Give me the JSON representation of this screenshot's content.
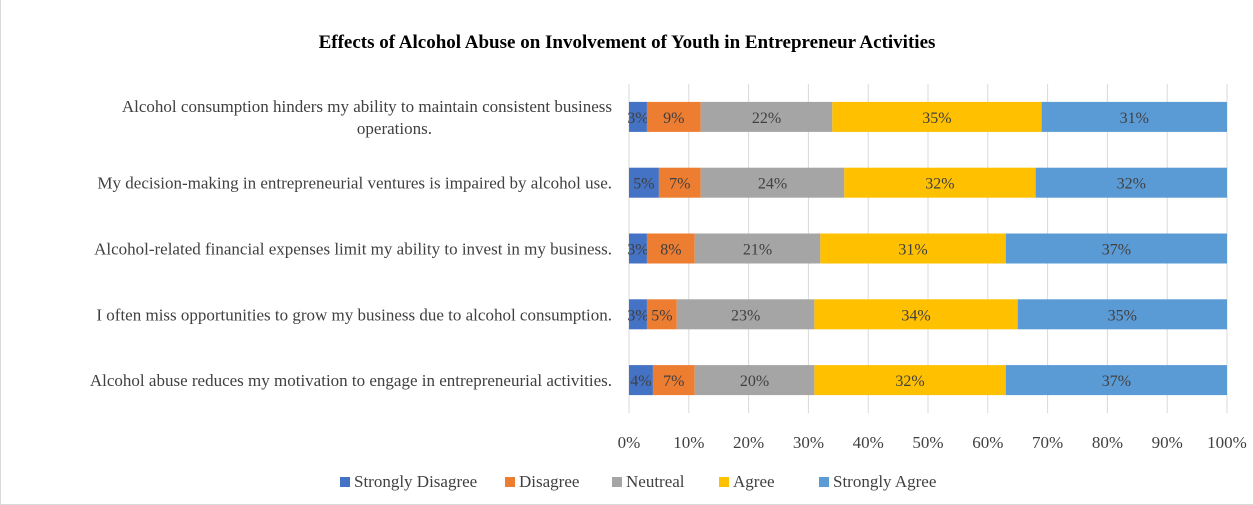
{
  "chart_data": {
    "type": "bar",
    "orientation": "horizontal",
    "stacked": "percent",
    "title": "Effects of Alcohol Abuse on Involvement of Youth in Entrepreneur Activities",
    "categories": [
      [
        "Alcohol consumption hinders my ability to maintain consistent business",
        "operations."
      ],
      [
        "My decision-making in entrepreneurial ventures is impaired by alcohol use."
      ],
      [
        "Alcohol-related financial expenses limit my ability to invest in my business."
      ],
      [
        "I often miss opportunities to grow my business due to alcohol consumption."
      ],
      [
        "Alcohol abuse reduces my motivation to engage in entrepreneurial activities."
      ]
    ],
    "series": [
      {
        "name": "Strongly Disagree",
        "color": "#4472c4",
        "values": [
          3,
          5,
          3,
          3,
          4
        ],
        "labels": [
          "3%",
          "5%",
          "3%",
          "3%",
          "4%"
        ]
      },
      {
        "name": "Disagree",
        "color": "#ed7d31",
        "values": [
          9,
          7,
          8,
          5,
          7
        ],
        "labels": [
          "9%",
          "7%",
          "8%",
          "5%",
          "7%"
        ]
      },
      {
        "name": "Neutreal",
        "color": "#a5a5a5",
        "values": [
          22,
          24,
          21,
          23,
          20
        ],
        "labels": [
          "22%",
          "24%",
          "21%",
          "23%",
          "20%"
        ]
      },
      {
        "name": "Agree",
        "color": "#ffc000",
        "values": [
          35,
          32,
          31,
          34,
          32
        ],
        "labels": [
          "35%",
          "32%",
          "31%",
          "34%",
          "32%"
        ]
      },
      {
        "name": "Strongly Agree",
        "color": "#5b9bd5",
        "values": [
          31,
          32,
          37,
          35,
          37
        ],
        "labels": [
          "31%",
          "32%",
          "37%",
          "35%",
          "37%"
        ]
      }
    ],
    "xlim": [
      0,
      100
    ],
    "xticks": [
      "0%",
      "10%",
      "20%",
      "30%",
      "40%",
      "50%",
      "60%",
      "70%",
      "80%",
      "90%",
      "100%"
    ],
    "grid": true,
    "legend": "bottom"
  }
}
